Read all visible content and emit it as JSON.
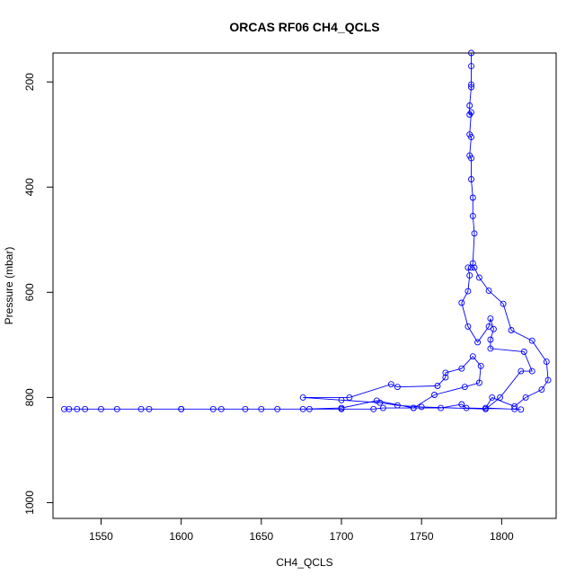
{
  "chart_data": {
    "type": "line",
    "title": "ORCAS RF06 CH4_QCLS",
    "xlabel": "CH4_QCLS",
    "ylabel": "Pressure (mbar)",
    "xlim": [
      1520,
      1834
    ],
    "ylim": [
      1030,
      145
    ],
    "y_reversed": true,
    "x_ticks": [
      1550,
      1600,
      1650,
      1700,
      1750,
      1800
    ],
    "y_ticks": [
      200,
      400,
      600,
      800,
      1000
    ],
    "grid": false,
    "legend": "none",
    "series": [
      {
        "color": "#0000ff",
        "marker": "open-circle",
        "points": [
          [
            1781,
            145
          ],
          [
            1781,
            170
          ],
          [
            1781,
            205
          ],
          [
            1781,
            210
          ],
          [
            1780,
            245
          ],
          [
            1780,
            262
          ],
          [
            1781,
            258
          ],
          [
            1780,
            300
          ],
          [
            1781,
            305
          ],
          [
            1780,
            340
          ],
          [
            1781,
            345
          ],
          [
            1781,
            385
          ],
          [
            1782,
            420
          ],
          [
            1782,
            455
          ],
          [
            1783,
            488
          ],
          [
            1782,
            545
          ],
          [
            1781,
            553
          ],
          [
            1783,
            553
          ],
          [
            1786,
            572
          ],
          [
            1792,
            597
          ],
          [
            1801,
            622
          ],
          [
            1806,
            672
          ],
          [
            1819,
            692
          ],
          [
            1828,
            732
          ],
          [
            1829,
            767
          ],
          [
            1825,
            785
          ],
          [
            1815,
            800
          ],
          [
            1808,
            817
          ],
          [
            1794,
            800
          ],
          [
            1790,
            820
          ],
          [
            1812,
            823
          ],
          [
            1808,
            822
          ],
          [
            1778,
            820
          ],
          [
            1775,
            813
          ],
          [
            1762,
            820
          ],
          [
            1745,
            820
          ],
          [
            1726,
            820
          ],
          [
            1720,
            822
          ],
          [
            1700,
            822
          ],
          [
            1680,
            822
          ],
          [
            1660,
            822
          ],
          [
            1640,
            822
          ],
          [
            1620,
            822
          ],
          [
            1600,
            822
          ],
          [
            1580,
            822
          ],
          [
            1560,
            822
          ],
          [
            1540,
            822
          ],
          [
            1530,
            822
          ],
          [
            1527,
            822
          ],
          [
            1535,
            822
          ],
          [
            1550,
            822
          ],
          [
            1575,
            822
          ],
          [
            1600,
            822
          ],
          [
            1625,
            822
          ],
          [
            1650,
            822
          ],
          [
            1676,
            822
          ],
          [
            1700,
            820
          ],
          [
            1722,
            806
          ],
          [
            1745,
            820
          ],
          [
            1758,
            795
          ],
          [
            1777,
            780
          ],
          [
            1786,
            772
          ],
          [
            1787,
            740
          ],
          [
            1782,
            722
          ],
          [
            1775,
            745
          ],
          [
            1765,
            753
          ],
          [
            1765,
            762
          ],
          [
            1760,
            778
          ],
          [
            1735,
            780
          ],
          [
            1731,
            775
          ],
          [
            1705,
            800
          ],
          [
            1676,
            800
          ],
          [
            1700,
            805
          ],
          [
            1724,
            810
          ],
          [
            1735,
            815
          ],
          [
            1750,
            818
          ],
          [
            1790,
            822
          ],
          [
            1799,
            800
          ],
          [
            1812,
            750
          ],
          [
            1819,
            750
          ],
          [
            1814,
            713
          ],
          [
            1793,
            707
          ],
          [
            1793,
            690
          ],
          [
            1795,
            670
          ],
          [
            1793,
            650
          ],
          [
            1792,
            665
          ],
          [
            1785,
            695
          ],
          [
            1779,
            665
          ],
          [
            1775,
            620
          ],
          [
            1779,
            598
          ],
          [
            1780,
            568
          ],
          [
            1779,
            553
          ]
        ]
      }
    ]
  }
}
